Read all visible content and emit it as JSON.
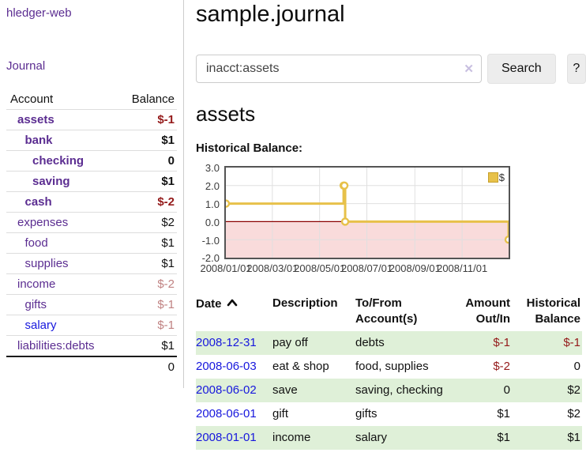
{
  "sidebar": {
    "app_title": "hledger-web",
    "nav": {
      "journal_label": "Journal"
    },
    "accounts_table": {
      "headers": [
        "Account",
        "Balance"
      ],
      "rows": [
        {
          "name": "assets",
          "depth": 0,
          "balance": "$-1",
          "in_current_view": true
        },
        {
          "name": "bank",
          "depth": 1,
          "balance": "$1",
          "in_current_view": true
        },
        {
          "name": "checking",
          "depth": 2,
          "balance": "0",
          "in_current_view": true
        },
        {
          "name": "saving",
          "depth": 2,
          "balance": "$1",
          "in_current_view": true
        },
        {
          "name": "cash",
          "depth": 1,
          "balance": "$-2",
          "in_current_view": true
        },
        {
          "name": "expenses",
          "depth": 0,
          "balance": "$2"
        },
        {
          "name": "food",
          "depth": 1,
          "balance": "$1"
        },
        {
          "name": "supplies",
          "depth": 1,
          "balance": "$1"
        },
        {
          "name": "income",
          "depth": 0,
          "balance": "$-2",
          "dimmed": true
        },
        {
          "name": "gifts",
          "depth": 1,
          "balance": "$-1",
          "dimmed": true
        },
        {
          "name": "salary",
          "depth": 1,
          "balance": "$-1",
          "dimmed": true,
          "visited": false
        },
        {
          "name": "liabilities:debts",
          "depth": 0,
          "balance": "$1"
        }
      ],
      "total": "0"
    }
  },
  "header": {
    "title": "sample.journal"
  },
  "search": {
    "value": "inacct:assets",
    "clear_icon": "✕",
    "button_label": "Search",
    "help_label": "?"
  },
  "account_page": {
    "title": "assets",
    "chart_label": "Historical Balance:"
  },
  "chart_data": {
    "type": "line",
    "step": true,
    "title": "Historical Balance",
    "legend_label": "$",
    "legend_position": "top-right",
    "grid": true,
    "xlim": [
      "2008-01-01",
      "2008-12-31"
    ],
    "ylim": [
      -2,
      3
    ],
    "y_ticks": [
      {
        "v": 3,
        "label": "3.0"
      },
      {
        "v": 2,
        "label": "2.0"
      },
      {
        "v": 1,
        "label": "1.0"
      },
      {
        "v": 0,
        "label": "0.0"
      },
      {
        "v": -1,
        "label": "-1.0"
      },
      {
        "v": -2,
        "label": "-2.0"
      }
    ],
    "x_ticks": [
      {
        "date": "2008-01-01",
        "label": "2008/01/01"
      },
      {
        "date": "2008-03-01",
        "label": "2008/03/01"
      },
      {
        "date": "2008-05-01",
        "label": "2008/05/01"
      },
      {
        "date": "2008-07-01",
        "label": "2008/07/01"
      },
      {
        "date": "2008-09-01",
        "label": "2008/09/01"
      },
      {
        "date": "2008-11-01",
        "label": "2008/11/01"
      }
    ],
    "series": [
      {
        "name": "$",
        "points": [
          [
            "2008-01-01",
            1
          ],
          [
            "2008-06-01",
            2
          ],
          [
            "2008-06-02",
            2
          ],
          [
            "2008-06-03",
            0
          ],
          [
            "2008-12-31",
            -1
          ]
        ]
      }
    ]
  },
  "register_table": {
    "headers": {
      "date": "Date",
      "sort_icon": "chevron-up-icon",
      "description": "Description",
      "accounts": "To/From Account(s)",
      "amount": "Amount Out/In",
      "balance": "Historical Balance"
    },
    "rows": [
      {
        "date": "2008-12-31",
        "description": "pay off",
        "accounts": "debts",
        "amount": "$-1",
        "balance": "$-1"
      },
      {
        "date": "2008-06-03",
        "description": "eat & shop",
        "accounts": "food, supplies",
        "amount": "$-2",
        "balance": "0"
      },
      {
        "date": "2008-06-02",
        "description": "save",
        "accounts": "saving, checking",
        "amount": "0",
        "balance": "$2"
      },
      {
        "date": "2008-06-01",
        "description": "gift",
        "accounts": "gifts",
        "amount": "$1",
        "balance": "$2"
      },
      {
        "date": "2008-01-01",
        "description": "income",
        "accounts": "salary",
        "amount": "$1",
        "balance": "$1"
      }
    ]
  },
  "colors": {
    "link_purple": "#5b2d91",
    "link_blue": "#1717dd",
    "negative": "#941a1a",
    "negative_dimmed": "#c08282",
    "row_stripe_green": "#dff0d8",
    "chart_line": "#e7c14a",
    "chart_line_border": "#c7a02c",
    "chart_negative_region": "#f9dbdb",
    "chart_zero_line": "#8b0000",
    "chart_grid": "#e0e0e0",
    "chart_border": "#545454"
  }
}
